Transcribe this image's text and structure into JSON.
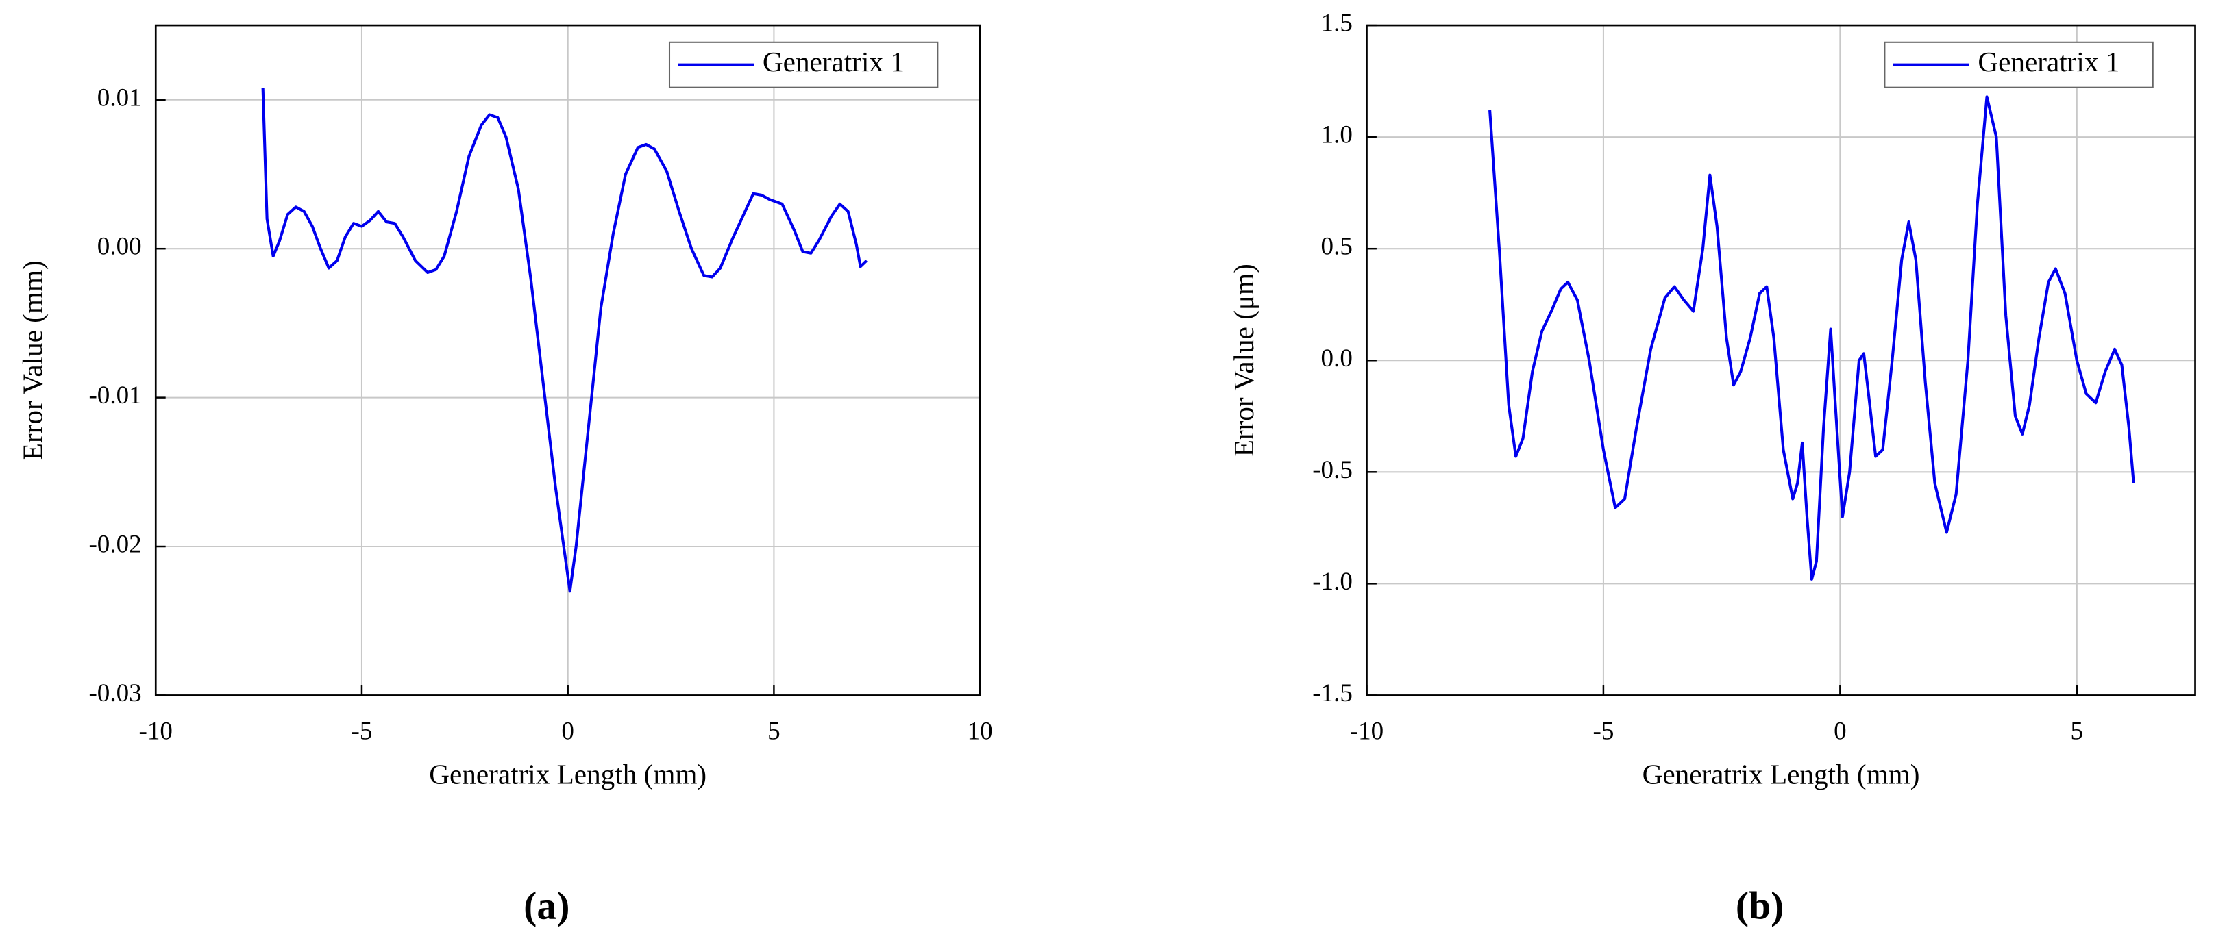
{
  "chart_data": [
    {
      "type": "line",
      "panel_label": "(a)",
      "xlabel": "Generatrix Length (mm)",
      "ylabel": "Error Value (mm)",
      "xlim": [
        -10,
        10
      ],
      "xticks": [
        -10,
        -5,
        0,
        5,
        10
      ],
      "ylim": [
        -0.03,
        0.015
      ],
      "yticks": [
        -0.03,
        -0.02,
        -0.01,
        {
          "value": 0,
          "label": "0.00"
        },
        0.01
      ],
      "grid": true,
      "legend": "upper right",
      "x": [
        -7.4,
        -7.3,
        -7.15,
        -7.0,
        -6.8,
        -6.6,
        -6.4,
        -6.2,
        -6.0,
        -5.8,
        -5.6,
        -5.4,
        -5.2,
        -5.0,
        -4.8,
        -4.6,
        -4.4,
        -4.2,
        -4.0,
        -3.7,
        -3.4,
        -3.2,
        -3.0,
        -2.7,
        -2.4,
        -2.1,
        -1.9,
        -1.7,
        -1.5,
        -1.2,
        -0.9,
        -0.6,
        -0.3,
        -0.1,
        0.05,
        0.2,
        0.5,
        0.8,
        1.1,
        1.4,
        1.7,
        1.9,
        2.1,
        2.4,
        2.7,
        3.0,
        3.3,
        3.5,
        3.7,
        4.0,
        4.3,
        4.5,
        4.7,
        4.9,
        5.2,
        5.5,
        5.7,
        5.9,
        6.1,
        6.4,
        6.6,
        6.8,
        7.0,
        7.1,
        7.25
      ],
      "series": [
        {
          "name": "Generatrix 1",
          "color": "#0000ee",
          "values": [
            0.0108,
            0.002,
            -0.0005,
            0.0005,
            0.0023,
            0.0028,
            0.0025,
            0.0015,
            0.0,
            -0.0013,
            -0.0008,
            0.0008,
            0.0017,
            0.0015,
            0.0019,
            0.0025,
            0.0018,
            0.0017,
            0.0008,
            -0.0008,
            -0.0016,
            -0.0014,
            -0.0005,
            0.0025,
            0.0062,
            0.0083,
            0.009,
            0.0088,
            0.0075,
            0.004,
            -0.002,
            -0.009,
            -0.016,
            -0.02,
            -0.023,
            -0.02,
            -0.012,
            -0.004,
            0.001,
            0.005,
            0.0068,
            0.007,
            0.0067,
            0.0052,
            0.0025,
            0.0,
            -0.0018,
            -0.0019,
            -0.0013,
            0.0007,
            0.0025,
            0.0037,
            0.0036,
            0.0033,
            0.003,
            0.0012,
            -0.0002,
            -0.0003,
            0.0006,
            0.0022,
            0.003,
            0.0025,
            0.0003,
            -0.0012,
            -0.0008
          ]
        }
      ]
    },
    {
      "type": "line",
      "panel_label": "(b)",
      "xlabel": "Generatrix Length (mm)",
      "ylabel": "Error Value (μm)",
      "xlim": [
        -10,
        7.5
      ],
      "xticks": [
        -10,
        -5,
        0,
        5
      ],
      "ylim": [
        -1.5,
        1.5
      ],
      "yticks": [
        -1.5,
        {
          "value": -1,
          "label": "-1.0"
        },
        -0.5,
        {
          "value": 0,
          "label": "0.0"
        },
        0.5,
        {
          "value": 1,
          "label": "1.0"
        },
        1.5
      ],
      "grid": true,
      "legend": "upper right",
      "x": [
        -7.4,
        -7.2,
        -7.0,
        -6.85,
        -6.7,
        -6.5,
        -6.3,
        -6.1,
        -5.9,
        -5.75,
        -5.55,
        -5.3,
        -5.0,
        -4.75,
        -4.55,
        -4.3,
        -4.0,
        -3.7,
        -3.5,
        -3.3,
        -3.1,
        -2.9,
        -2.75,
        -2.6,
        -2.4,
        -2.25,
        -2.1,
        -1.9,
        -1.7,
        -1.55,
        -1.4,
        -1.2,
        -1.0,
        -0.9,
        -0.8,
        -0.7,
        -0.6,
        -0.5,
        -0.35,
        -0.2,
        -0.1,
        0.05,
        0.2,
        0.4,
        0.5,
        0.6,
        0.75,
        0.9,
        1.1,
        1.3,
        1.45,
        1.6,
        1.8,
        2.0,
        2.25,
        2.45,
        2.7,
        2.9,
        3.1,
        3.3,
        3.5,
        3.7,
        3.85,
        4.0,
        4.2,
        4.4,
        4.55,
        4.75,
        5.0,
        5.2,
        5.4,
        5.6,
        5.8,
        5.95,
        6.1,
        6.2
      ],
      "series": [
        {
          "name": "Generatrix 1",
          "color": "#0000ee",
          "values": [
            1.12,
            0.5,
            -0.2,
            -0.43,
            -0.35,
            -0.05,
            0.13,
            0.22,
            0.32,
            0.35,
            0.27,
            0.0,
            -0.4,
            -0.66,
            -0.62,
            -0.3,
            0.05,
            0.28,
            0.33,
            0.27,
            0.22,
            0.5,
            0.83,
            0.6,
            0.1,
            -0.11,
            -0.05,
            0.1,
            0.3,
            0.33,
            0.1,
            -0.4,
            -0.62,
            -0.55,
            -0.37,
            -0.7,
            -0.98,
            -0.9,
            -0.3,
            0.14,
            -0.2,
            -0.7,
            -0.5,
            0.0,
            0.03,
            -0.15,
            -0.43,
            -0.4,
            0.0,
            0.45,
            0.62,
            0.45,
            -0.1,
            -0.55,
            -0.77,
            -0.6,
            0.0,
            0.7,
            1.18,
            1.0,
            0.2,
            -0.25,
            -0.33,
            -0.2,
            0.1,
            0.35,
            0.41,
            0.3,
            0.0,
            -0.15,
            -0.19,
            -0.05,
            0.05,
            -0.02,
            -0.3,
            -0.55
          ]
        }
      ]
    }
  ]
}
